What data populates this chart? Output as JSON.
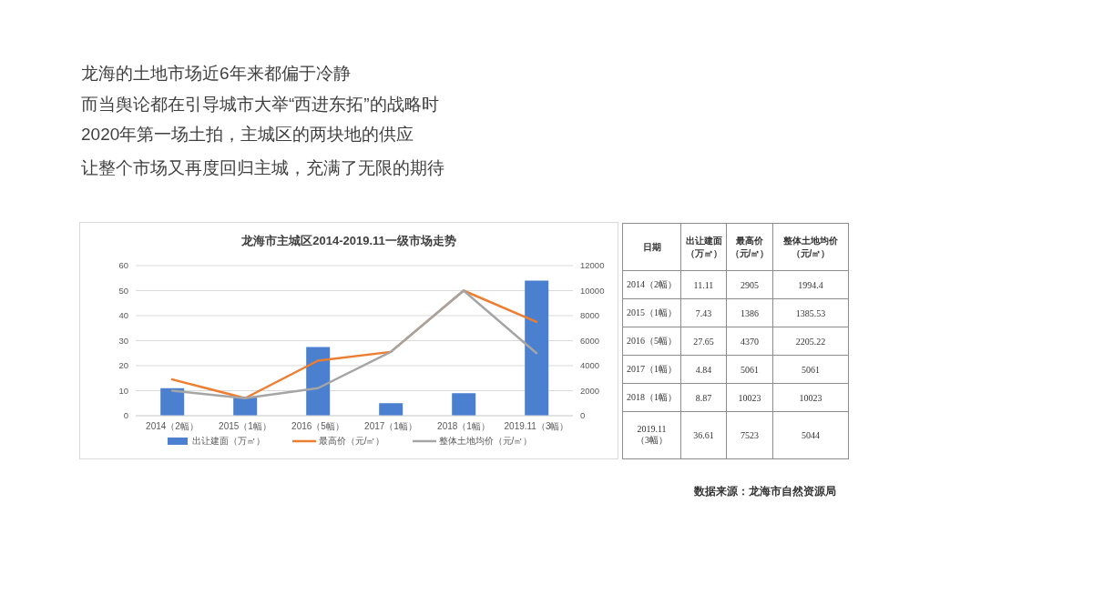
{
  "chart_data": [
    {
      "type": "bar",
      "title": "龙海市主城区2014-2019.11一级市场走势",
      "categories": [
        "2014（2幅）",
        "2015（1幅）",
        "2016（5幅）",
        "2017（1幅）",
        "2018（1幅）",
        "2019.11（3幅）"
      ],
      "series": [
        {
          "name": "出让建面（万㎡）",
          "color": "#4a80cf",
          "values": [
            11,
            7.5,
            27.5,
            5,
            9,
            54
          ]
        },
        {
          "name": "最高价（元/㎡）",
          "type": "line",
          "axis": "y2",
          "color": "#ed7d31",
          "values": [
            2900,
            1400,
            4400,
            5100,
            10000,
            7500
          ]
        },
        {
          "name": "整体土地均价（元/㎡）",
          "type": "line",
          "axis": "y2",
          "color": "#a5a5a5",
          "values": [
            2000,
            1400,
            2200,
            5100,
            10000,
            5000
          ]
        }
      ],
      "ylim": [
        0,
        60
      ],
      "yticks": [
        0,
        10,
        20,
        30,
        40,
        50,
        60
      ],
      "y2lim": [
        0,
        12000
      ],
      "y2ticks": [
        0,
        2000,
        4000,
        6000,
        8000,
        10000,
        12000
      ],
      "grid": "y",
      "legend": "bottom",
      "annotations": [
        "龙海的土地市场近6年来都偏于冷静",
        "而当舆论都在引导城市大举“西进东拓”的战略时",
        "2020年第一场土拍，主城区的两块地的供应",
        "让整个市场又再度回归主城，充满了无限的期待"
      ]
    },
    {
      "type": "other",
      "categories": [
        "2014（2幅）",
        "2015（1幅）",
        "2016（5幅）",
        "2017（1幅）",
        "2018（1幅）",
        "2019.11（3幅）"
      ],
      "series": [
        {
          "name": "出让建面（万㎡）",
          "values": [
            11.11,
            7.43,
            27.65,
            4.84,
            8.87,
            36.61
          ]
        },
        {
          "name": "最高价（元/㎡）",
          "values": [
            2905,
            1386,
            4370,
            5061,
            10023,
            7523
          ]
        },
        {
          "name": "整体土地均价（元/㎡）",
          "values": [
            1994.4,
            1385.53,
            2205.22,
            5061,
            10023,
            5044
          ]
        }
      ],
      "data_labels": true,
      "annotations": [
        "日期",
        "数据来源：龙海市自然资源局"
      ]
    }
  ]
}
